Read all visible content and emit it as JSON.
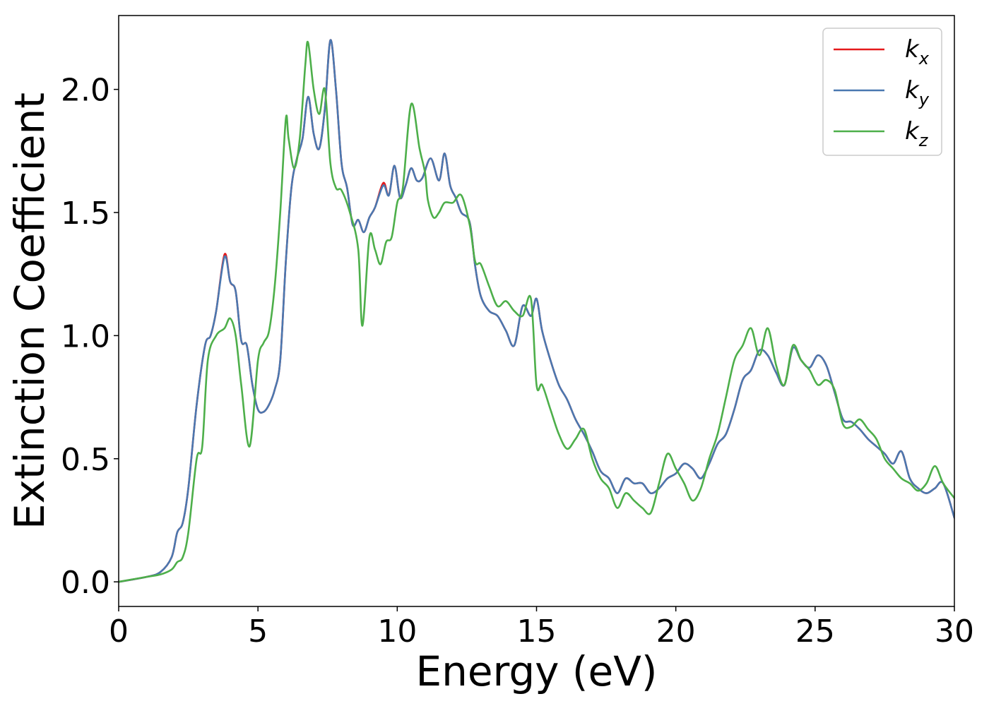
{
  "chart_data": {
    "type": "line",
    "xlabel": "Energy (eV)",
    "ylabel": "Extinction Coefficient",
    "xlim": [
      0,
      30
    ],
    "ylim": [
      -0.1,
      2.3
    ],
    "xticks": [
      0,
      5,
      10,
      15,
      20,
      25,
      30
    ],
    "xtick_labels": [
      "0",
      "5",
      "10",
      "15",
      "20",
      "25",
      "30"
    ],
    "yticks": [
      0,
      0.5,
      1.0,
      1.5,
      2.0
    ],
    "ytick_labels": [
      "0.0",
      "0.5",
      "1.0",
      "1.5",
      "2.0"
    ],
    "grid": false,
    "legend_position": "top-right",
    "series": [
      {
        "name": "k_x",
        "label_main": "k",
        "label_sub": "x",
        "color": "#e41a1c",
        "x": [
          0,
          1,
          1.5,
          1.9,
          2.1,
          2.3,
          2.5,
          2.8,
          3.1,
          3.3,
          3.5,
          3.8,
          4.0,
          4.2,
          4.4,
          4.6,
          4.8,
          5.0,
          5.2,
          5.4,
          5.6,
          5.8,
          6.0,
          6.2,
          6.4,
          6.6,
          6.8,
          7.0,
          7.2,
          7.4,
          7.6,
          7.8,
          8.0,
          8.2,
          8.4,
          8.6,
          8.8,
          9.0,
          9.2,
          9.5,
          9.7,
          9.9,
          10.1,
          10.3,
          10.5,
          10.7,
          10.9,
          11.2,
          11.5,
          11.7,
          11.9,
          12.1,
          12.3,
          12.6,
          12.8,
          13.0,
          13.3,
          13.6,
          13.9,
          14.2,
          14.5,
          14.8,
          15.0,
          15.2,
          15.5,
          15.8,
          16.1,
          16.4,
          16.7,
          17.0,
          17.3,
          17.6,
          17.9,
          18.2,
          18.5,
          18.8,
          19.1,
          19.4,
          19.7,
          20.0,
          20.3,
          20.6,
          20.9,
          21.2,
          21.5,
          21.8,
          22.1,
          22.4,
          22.7,
          23.0,
          23.3,
          23.6,
          23.9,
          24.2,
          24.5,
          24.8,
          25.1,
          25.4,
          25.7,
          26.0,
          26.3,
          26.6,
          26.9,
          27.2,
          27.5,
          27.8,
          28.1,
          28.4,
          28.7,
          29.0,
          29.3,
          29.6,
          30
        ],
        "y": [
          0,
          0.02,
          0.04,
          0.1,
          0.2,
          0.24,
          0.38,
          0.72,
          0.96,
          1.0,
          1.1,
          1.33,
          1.22,
          1.18,
          0.98,
          0.96,
          0.8,
          0.7,
          0.69,
          0.72,
          0.78,
          0.9,
          1.3,
          1.6,
          1.72,
          1.8,
          1.97,
          1.82,
          1.76,
          1.92,
          2.2,
          2.0,
          1.7,
          1.6,
          1.45,
          1.47,
          1.42,
          1.48,
          1.52,
          1.62,
          1.57,
          1.69,
          1.56,
          1.61,
          1.68,
          1.63,
          1.64,
          1.72,
          1.63,
          1.74,
          1.61,
          1.56,
          1.5,
          1.46,
          1.28,
          1.16,
          1.1,
          1.08,
          1.02,
          0.96,
          1.12,
          1.08,
          1.15,
          1.02,
          0.9,
          0.8,
          0.74,
          0.66,
          0.6,
          0.53,
          0.45,
          0.42,
          0.36,
          0.42,
          0.4,
          0.4,
          0.36,
          0.38,
          0.42,
          0.44,
          0.48,
          0.46,
          0.42,
          0.48,
          0.56,
          0.6,
          0.7,
          0.82,
          0.86,
          0.94,
          0.92,
          0.85,
          0.8,
          0.95,
          0.9,
          0.87,
          0.92,
          0.88,
          0.77,
          0.66,
          0.65,
          0.62,
          0.58,
          0.55,
          0.52,
          0.48,
          0.53,
          0.42,
          0.38,
          0.36,
          0.38,
          0.4,
          0.26
        ]
      },
      {
        "name": "k_y",
        "label_main": "k",
        "label_sub": "y",
        "color": "#4a78b0",
        "x": [
          0,
          1,
          1.5,
          1.9,
          2.1,
          2.3,
          2.5,
          2.8,
          3.1,
          3.3,
          3.5,
          3.8,
          4.0,
          4.2,
          4.4,
          4.6,
          4.8,
          5.0,
          5.2,
          5.4,
          5.6,
          5.8,
          6.0,
          6.2,
          6.4,
          6.6,
          6.8,
          7.0,
          7.2,
          7.4,
          7.6,
          7.8,
          8.0,
          8.2,
          8.4,
          8.6,
          8.8,
          9.0,
          9.2,
          9.5,
          9.7,
          9.9,
          10.1,
          10.3,
          10.5,
          10.7,
          10.9,
          11.2,
          11.5,
          11.7,
          11.9,
          12.1,
          12.3,
          12.6,
          12.8,
          13.0,
          13.3,
          13.6,
          13.9,
          14.2,
          14.5,
          14.8,
          15.0,
          15.2,
          15.5,
          15.8,
          16.1,
          16.4,
          16.7,
          17.0,
          17.3,
          17.6,
          17.9,
          18.2,
          18.5,
          18.8,
          19.1,
          19.4,
          19.7,
          20.0,
          20.3,
          20.6,
          20.9,
          21.2,
          21.5,
          21.8,
          22.1,
          22.4,
          22.7,
          23.0,
          23.3,
          23.6,
          23.9,
          24.2,
          24.5,
          24.8,
          25.1,
          25.4,
          25.7,
          26.0,
          26.3,
          26.6,
          26.9,
          27.2,
          27.5,
          27.8,
          28.1,
          28.4,
          28.7,
          29.0,
          29.3,
          29.6,
          30
        ],
        "y": [
          0,
          0.02,
          0.04,
          0.1,
          0.2,
          0.24,
          0.38,
          0.72,
          0.96,
          1.0,
          1.1,
          1.32,
          1.22,
          1.18,
          0.98,
          0.96,
          0.8,
          0.7,
          0.69,
          0.72,
          0.78,
          0.9,
          1.3,
          1.6,
          1.72,
          1.8,
          1.97,
          1.82,
          1.76,
          1.92,
          2.2,
          2.0,
          1.7,
          1.6,
          1.45,
          1.47,
          1.42,
          1.48,
          1.52,
          1.61,
          1.57,
          1.69,
          1.56,
          1.61,
          1.68,
          1.63,
          1.64,
          1.72,
          1.63,
          1.74,
          1.61,
          1.56,
          1.5,
          1.46,
          1.28,
          1.16,
          1.1,
          1.08,
          1.02,
          0.96,
          1.12,
          1.08,
          1.15,
          1.02,
          0.9,
          0.8,
          0.74,
          0.66,
          0.6,
          0.53,
          0.45,
          0.42,
          0.36,
          0.42,
          0.4,
          0.4,
          0.36,
          0.38,
          0.42,
          0.44,
          0.48,
          0.46,
          0.42,
          0.48,
          0.56,
          0.6,
          0.7,
          0.82,
          0.86,
          0.94,
          0.92,
          0.85,
          0.8,
          0.95,
          0.9,
          0.87,
          0.92,
          0.88,
          0.77,
          0.66,
          0.65,
          0.62,
          0.58,
          0.55,
          0.52,
          0.48,
          0.53,
          0.42,
          0.38,
          0.36,
          0.38,
          0.4,
          0.26
        ]
      },
      {
        "name": "k_z",
        "label_main": "k",
        "label_sub": "z",
        "color": "#4daf4a",
        "x": [
          0,
          1,
          1.5,
          1.9,
          2.1,
          2.3,
          2.5,
          2.8,
          3.0,
          3.2,
          3.5,
          3.8,
          4.0,
          4.2,
          4.4,
          4.7,
          5.0,
          5.2,
          5.4,
          5.6,
          5.8,
          6.0,
          6.1,
          6.3,
          6.5,
          6.7,
          6.8,
          7.0,
          7.2,
          7.4,
          7.6,
          7.8,
          8.0,
          8.3,
          8.6,
          8.75,
          9.0,
          9.2,
          9.4,
          9.6,
          9.8,
          10.0,
          10.2,
          10.5,
          10.8,
          11.0,
          11.1,
          11.3,
          11.5,
          11.7,
          12.0,
          12.3,
          12.6,
          12.8,
          13.0,
          13.3,
          13.6,
          13.9,
          14.2,
          14.5,
          14.8,
          15.0,
          15.2,
          15.5,
          15.8,
          16.1,
          16.4,
          16.7,
          17.0,
          17.3,
          17.6,
          17.9,
          18.2,
          18.5,
          18.8,
          19.1,
          19.4,
          19.7,
          20.0,
          20.3,
          20.6,
          20.9,
          21.2,
          21.5,
          21.8,
          22.1,
          22.4,
          22.7,
          23.0,
          23.3,
          23.6,
          23.9,
          24.2,
          24.5,
          24.8,
          25.1,
          25.4,
          25.7,
          26.0,
          26.3,
          26.6,
          26.9,
          27.2,
          27.5,
          27.8,
          28.1,
          28.4,
          28.7,
          29.0,
          29.3,
          29.6,
          30
        ],
        "y": [
          0,
          0.02,
          0.03,
          0.05,
          0.08,
          0.1,
          0.2,
          0.5,
          0.55,
          0.9,
          1.0,
          1.03,
          1.07,
          1.0,
          0.8,
          0.55,
          0.9,
          0.97,
          1.02,
          1.2,
          1.5,
          1.88,
          1.8,
          1.68,
          1.8,
          2.1,
          2.19,
          2.0,
          1.9,
          2.0,
          1.7,
          1.6,
          1.59,
          1.5,
          1.35,
          1.04,
          1.4,
          1.35,
          1.29,
          1.38,
          1.4,
          1.54,
          1.6,
          1.94,
          1.76,
          1.66,
          1.55,
          1.48,
          1.5,
          1.54,
          1.54,
          1.57,
          1.45,
          1.3,
          1.29,
          1.2,
          1.12,
          1.14,
          1.1,
          1.08,
          1.15,
          0.8,
          0.8,
          0.7,
          0.6,
          0.54,
          0.58,
          0.62,
          0.5,
          0.42,
          0.38,
          0.3,
          0.36,
          0.33,
          0.3,
          0.28,
          0.4,
          0.52,
          0.46,
          0.4,
          0.33,
          0.38,
          0.5,
          0.6,
          0.75,
          0.9,
          0.96,
          1.03,
          0.92,
          1.03,
          0.88,
          0.8,
          0.96,
          0.9,
          0.86,
          0.8,
          0.82,
          0.78,
          0.64,
          0.63,
          0.66,
          0.62,
          0.58,
          0.5,
          0.46,
          0.42,
          0.4,
          0.37,
          0.4,
          0.47,
          0.4,
          0.34
        ]
      }
    ]
  }
}
